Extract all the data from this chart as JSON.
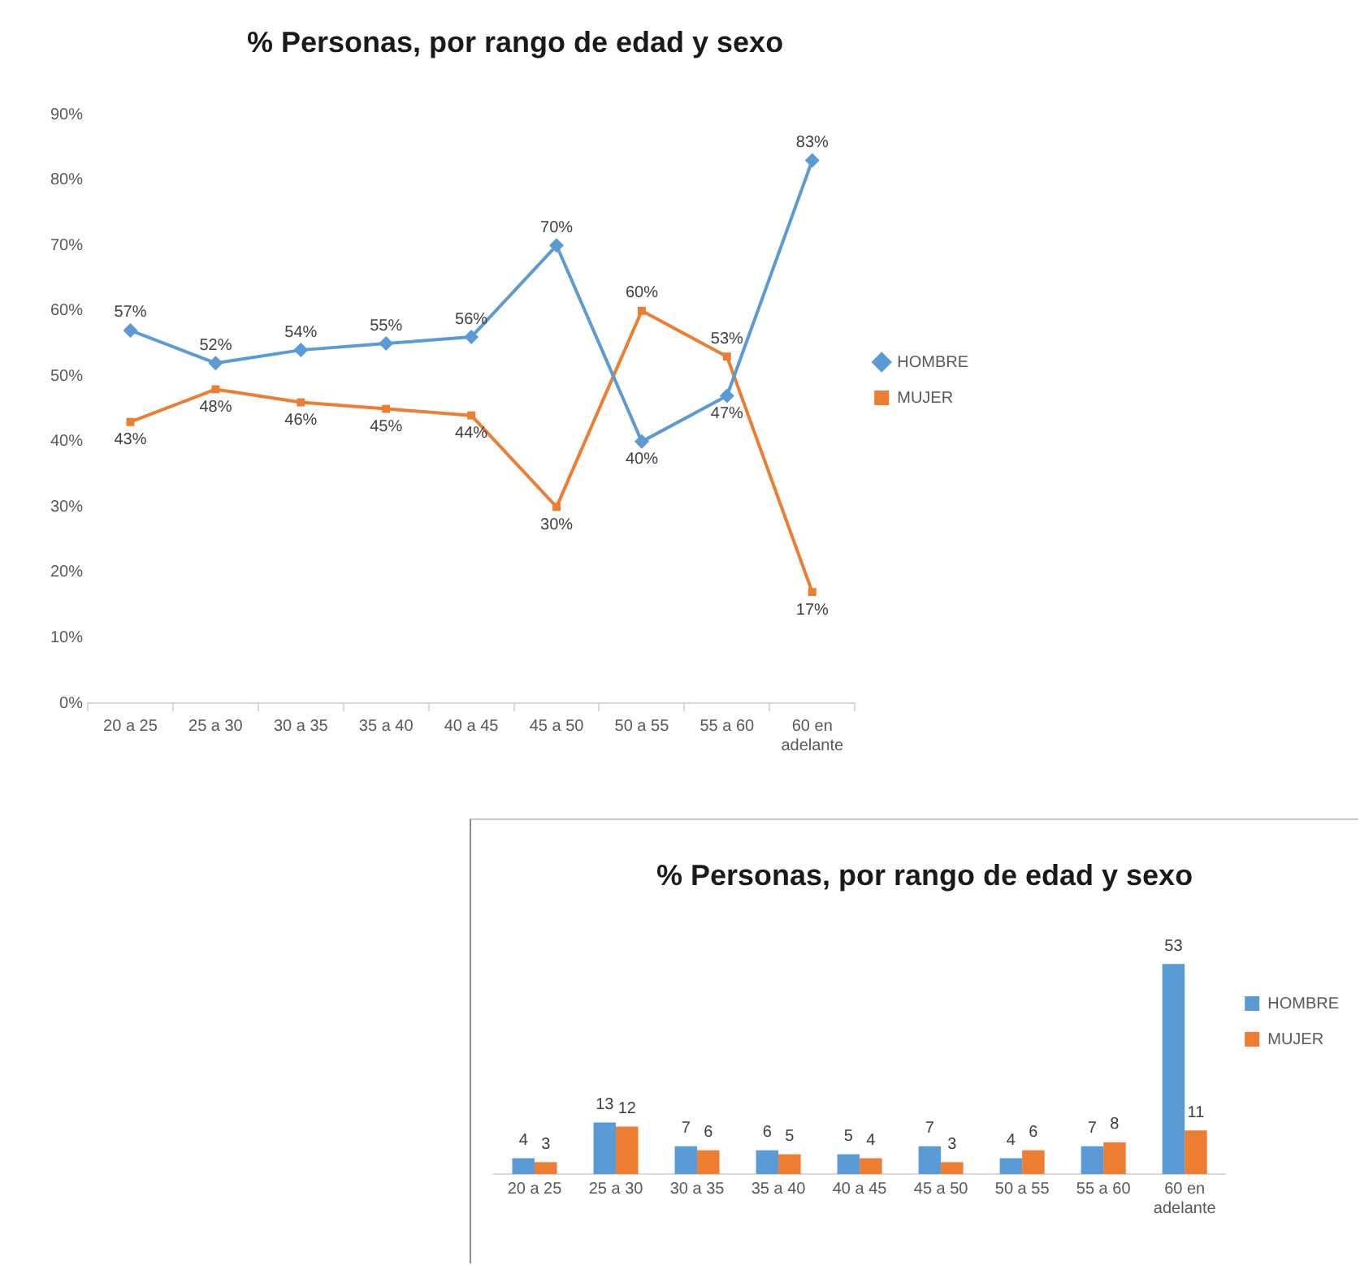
{
  "chart_data": [
    {
      "type": "line",
      "title": "% Personas, por rango de edad y sexo",
      "categories": [
        "20 a 25",
        "25 a 30",
        "30 a 35",
        "35 a 40",
        "40 a 45",
        "45 a 50",
        "50 a 55",
        "55 a 60",
        "60 en adelante"
      ],
      "series": [
        {
          "name": "HOMBRE",
          "color": "#5b9bd5",
          "marker": "diamond",
          "values": [
            57,
            52,
            54,
            55,
            56,
            70,
            40,
            47,
            83
          ],
          "value_labels": [
            "57%",
            "52%",
            "54%",
            "55%",
            "56%",
            "70%",
            "40%",
            "47%",
            "83%"
          ]
        },
        {
          "name": "MUJER",
          "color": "#ed7d31",
          "marker": "square",
          "values": [
            43,
            48,
            46,
            45,
            44,
            30,
            60,
            53,
            17
          ],
          "value_labels": [
            "43%",
            "48%",
            "46%",
            "45%",
            "44%",
            "30%",
            "60%",
            "53%",
            "17%"
          ]
        }
      ],
      "ylim": [
        0,
        90
      ],
      "yticks": [
        {
          "value": 0,
          "label": "0%"
        },
        {
          "value": 10,
          "label": "10%"
        },
        {
          "value": 20,
          "label": "20%"
        },
        {
          "value": 30,
          "label": "30%"
        },
        {
          "value": 40,
          "label": "40%"
        },
        {
          "value": 50,
          "label": "50%"
        },
        {
          "value": 60,
          "label": "60%"
        },
        {
          "value": 70,
          "label": "70%"
        },
        {
          "value": 80,
          "label": "80%"
        },
        {
          "value": 90,
          "label": "90%"
        }
      ],
      "legend": "right"
    },
    {
      "type": "bar",
      "title": "% Personas, por rango de edad y sexo",
      "categories": [
        "20 a 25",
        "25 a 30",
        "30 a 35",
        "35 a 40",
        "40 a 45",
        "45 a 50",
        "50 a 55",
        "55 a 60",
        "60 en adelante"
      ],
      "series": [
        {
          "name": "HOMBRE",
          "color": "#5b9bd5",
          "values": [
            4,
            13,
            7,
            6,
            5,
            7,
            4,
            7,
            53
          ]
        },
        {
          "name": "MUJER",
          "color": "#ed7d31",
          "values": [
            3,
            12,
            6,
            5,
            4,
            3,
            6,
            8,
            11
          ]
        }
      ],
      "data_labels": true,
      "tick_labels": "x",
      "legend": "right"
    }
  ]
}
